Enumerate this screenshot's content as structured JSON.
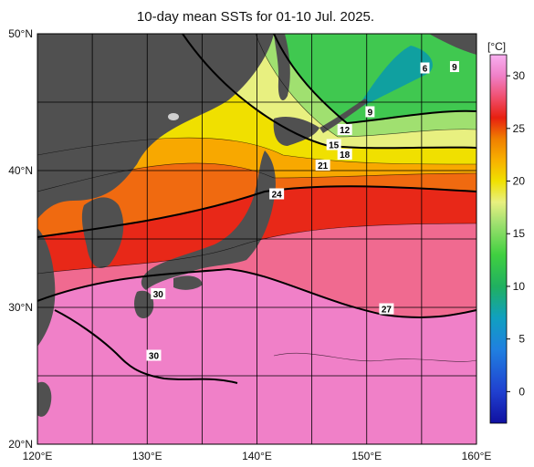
{
  "title": "10-day mean SSTs for 01-10 Jul. 2025.",
  "map": {
    "lon_range": [
      120,
      160
    ],
    "lat_range": [
      20,
      50
    ],
    "x_ticks": [
      "120°E",
      "130°E",
      "140°E",
      "150°E",
      "160°E"
    ],
    "y_ticks": [
      "20°N",
      "30°N",
      "40°N",
      "50°N"
    ],
    "grid": true,
    "land_color": "#505050"
  },
  "colorbar": {
    "unit": "[°C]",
    "range": [
      -3,
      32
    ],
    "ticks": [
      "0",
      "5",
      "10",
      "15",
      "20",
      "25",
      "30"
    ],
    "stops": [
      {
        "t": -3,
        "color": "#1010a0"
      },
      {
        "t": 0,
        "color": "#2040d0"
      },
      {
        "t": 4,
        "color": "#2080e0"
      },
      {
        "t": 7,
        "color": "#10a0c0"
      },
      {
        "t": 10,
        "color": "#20b060"
      },
      {
        "t": 13,
        "color": "#40d040"
      },
      {
        "t": 16,
        "color": "#a0e070"
      },
      {
        "t": 18,
        "color": "#e8f080"
      },
      {
        "t": 20,
        "color": "#f0e000"
      },
      {
        "t": 22,
        "color": "#f8b000"
      },
      {
        "t": 24,
        "color": "#f08000"
      },
      {
        "t": 26,
        "color": "#e82010"
      },
      {
        "t": 28,
        "color": "#f05070"
      },
      {
        "t": 30,
        "color": "#f080c8"
      },
      {
        "t": 32,
        "color": "#f8b0f0"
      }
    ]
  },
  "contour_labels": [
    {
      "text": "6",
      "lon": 155.3,
      "lat": 47.5
    },
    {
      "text": "9",
      "lon": 158.0,
      "lat": 47.6
    },
    {
      "text": "9",
      "lon": 150.3,
      "lat": 44.3
    },
    {
      "text": "12",
      "lon": 148.0,
      "lat": 43.0
    },
    {
      "text": "15",
      "lon": 147.0,
      "lat": 41.9
    },
    {
      "text": "18",
      "lon": 148.0,
      "lat": 41.2
    },
    {
      "text": "21",
      "lon": 146.0,
      "lat": 40.4
    },
    {
      "text": "24",
      "lon": 141.8,
      "lat": 38.3
    },
    {
      "text": "27",
      "lon": 151.8,
      "lat": 29.9
    },
    {
      "text": "30",
      "lon": 131.0,
      "lat": 31.0
    },
    {
      "text": "30",
      "lon": 130.6,
      "lat": 26.5
    }
  ]
}
